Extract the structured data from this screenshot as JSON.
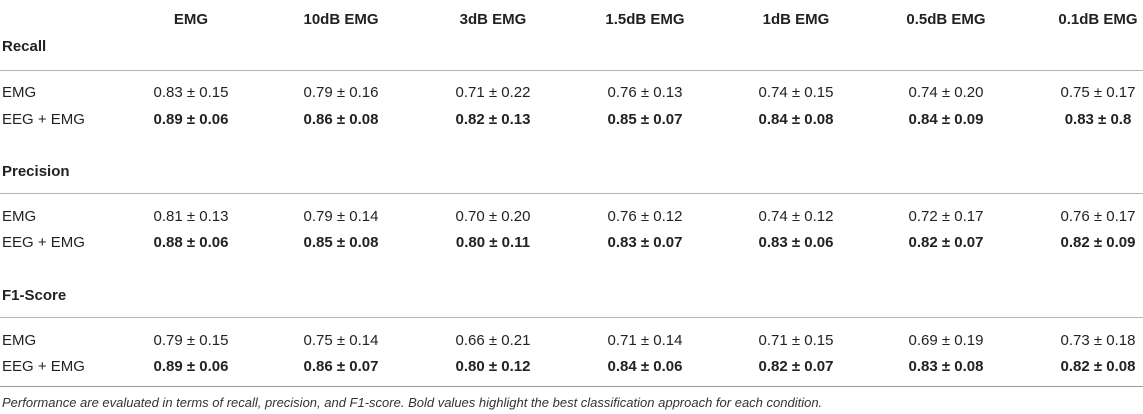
{
  "columns": [
    "EMG",
    "10dB EMG",
    "3dB EMG",
    "1.5dB EMG",
    "1dB EMG",
    "0.5dB EMG",
    "0.1dB EMG"
  ],
  "sections": [
    {
      "title": "Recall",
      "rows": [
        {
          "label": "EMG",
          "bold": false,
          "values": [
            "0.83 ± 0.15",
            "0.79 ± 0.16",
            "0.71 ± 0.22",
            "0.76 ± 0.13",
            "0.74 ± 0.15",
            "0.74 ± 0.20",
            "0.75 ± 0.17"
          ]
        },
        {
          "label": "EEG + EMG",
          "bold": true,
          "values": [
            "0.89 ± 0.06",
            "0.86 ± 0.08",
            "0.82 ± 0.13",
            "0.85 ± 0.07",
            "0.84 ± 0.08",
            "0.84 ± 0.09",
            "0.83 ± 0.8"
          ]
        }
      ]
    },
    {
      "title": "Precision",
      "rows": [
        {
          "label": "EMG",
          "bold": false,
          "values": [
            "0.81 ± 0.13",
            "0.79 ± 0.14",
            "0.70 ± 0.20",
            "0.76 ± 0.12",
            "0.74 ± 0.12",
            "0.72 ± 0.17",
            "0.76 ± 0.17"
          ]
        },
        {
          "label": "EEG + EMG",
          "bold": true,
          "values": [
            "0.88 ± 0.06",
            "0.85 ± 0.08",
            "0.80 ± 0.11",
            "0.83 ± 0.07",
            "0.83 ± 0.06",
            "0.82 ± 0.07",
            "0.82 ± 0.09"
          ]
        }
      ]
    },
    {
      "title": "F1-Score",
      "rows": [
        {
          "label": "EMG",
          "bold": false,
          "values": [
            "0.79 ± 0.15",
            "0.75 ± 0.14",
            "0.66 ± 0.21",
            "0.71 ± 0.14",
            "0.71 ± 0.15",
            "0.69 ± 0.19",
            "0.73 ± 0.18"
          ]
        },
        {
          "label": "EEG + EMG",
          "bold": true,
          "values": [
            "0.89 ± 0.06",
            "0.86 ± 0.07",
            "0.80 ± 0.12",
            "0.84 ± 0.06",
            "0.82 ± 0.07",
            "0.83 ± 0.08",
            "0.82 ± 0.08"
          ]
        }
      ]
    }
  ],
  "caption": "Performance are evaluated in terms of recall, precision, and F1-score. Bold values highlight the best classification approach for each condition."
}
